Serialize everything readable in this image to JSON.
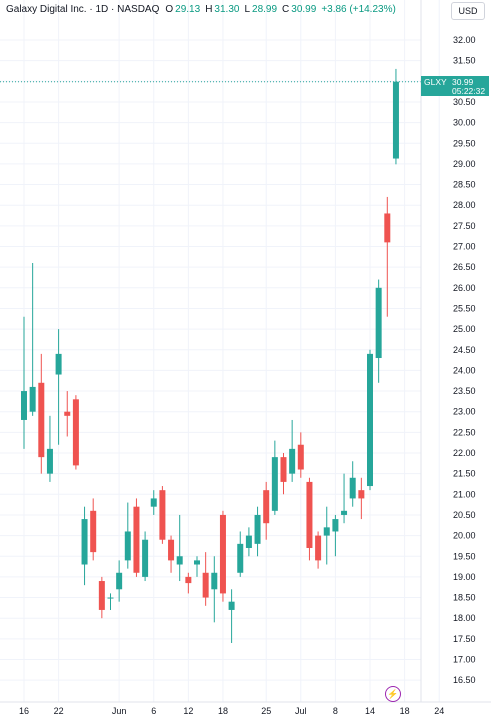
{
  "header": {
    "symbol_line": "Galaxy Digital Inc. · 1D · NASDAQ",
    "open_label": "O",
    "open": "29.13",
    "high_label": "H",
    "high": "31.30",
    "low_label": "L",
    "low": "28.99",
    "close_label": "C",
    "close": "30.99",
    "change": "+3.86 (+14.23%)"
  },
  "currency": "USD",
  "last_price": {
    "symbol": "GLXY",
    "price": "30.99",
    "countdown": "05:22:32"
  },
  "colors": {
    "up": "#26a69a",
    "down": "#ef5350",
    "last_line": "#26a69a",
    "grid": "#f0f3fa",
    "axis_text": "#131722",
    "event": "#9c27b0"
  },
  "event_icon": "lightning-icon",
  "chart_data": {
    "type": "candlestick",
    "title": "",
    "xlabel": "",
    "ylabel": "",
    "ylim": [
      16.2,
      32.4
    ],
    "y_ticks": [
      "32.00",
      "31.50",
      "31.00",
      "30.50",
      "30.00",
      "29.50",
      "29.00",
      "28.50",
      "28.00",
      "27.50",
      "27.00",
      "26.50",
      "26.00",
      "25.50",
      "25.00",
      "24.50",
      "24.00",
      "23.50",
      "23.00",
      "22.50",
      "22.00",
      "21.50",
      "21.00",
      "20.50",
      "20.00",
      "19.50",
      "19.00",
      "18.50",
      "18.00",
      "17.50",
      "17.00",
      "16.50"
    ],
    "x_ticks": [
      {
        "label": "16",
        "index": 0
      },
      {
        "label": "22",
        "index": 4
      },
      {
        "label": "Jun",
        "index": 11
      },
      {
        "label": "6",
        "index": 15
      },
      {
        "label": "12",
        "index": 19
      },
      {
        "label": "18",
        "index": 23
      },
      {
        "label": "25",
        "index": 28
      },
      {
        "label": "Jul",
        "index": 32
      },
      {
        "label": "8",
        "index": 36
      },
      {
        "label": "14",
        "index": 40
      },
      {
        "label": "18",
        "index": 44
      },
      {
        "label": "24",
        "index": 48
      }
    ],
    "grid": true,
    "candles": [
      {
        "o": 22.8,
        "h": 25.3,
        "l": 22.1,
        "c": 23.5
      },
      {
        "o": 23.0,
        "h": 26.6,
        "l": 22.9,
        "c": 23.6
      },
      {
        "o": 23.7,
        "h": 24.4,
        "l": 21.5,
        "c": 21.9
      },
      {
        "o": 21.5,
        "h": 22.9,
        "l": 21.3,
        "c": 22.1
      },
      {
        "o": 23.9,
        "h": 25.0,
        "l": 22.2,
        "c": 24.4
      },
      {
        "o": 23.0,
        "h": 23.5,
        "l": 22.4,
        "c": 22.9
      },
      {
        "o": 23.3,
        "h": 23.4,
        "l": 21.6,
        "c": 21.7
      },
      {
        "o": 19.3,
        "h": 20.7,
        "l": 18.8,
        "c": 20.4
      },
      {
        "o": 20.6,
        "h": 20.9,
        "l": 19.4,
        "c": 19.6
      },
      {
        "o": 18.9,
        "h": 19.0,
        "l": 18.0,
        "c": 18.2
      },
      {
        "o": 18.5,
        "h": 18.6,
        "l": 18.2,
        "c": 18.5
      },
      {
        "o": 18.7,
        "h": 19.4,
        "l": 18.4,
        "c": 19.1
      },
      {
        "o": 19.4,
        "h": 20.8,
        "l": 19.2,
        "c": 20.1
      },
      {
        "o": 20.7,
        "h": 20.9,
        "l": 19.0,
        "c": 19.1
      },
      {
        "o": 19.0,
        "h": 20.1,
        "l": 18.9,
        "c": 19.9
      },
      {
        "o": 20.7,
        "h": 21.1,
        "l": 20.5,
        "c": 20.9
      },
      {
        "o": 21.1,
        "h": 21.2,
        "l": 19.8,
        "c": 19.9
      },
      {
        "o": 19.9,
        "h": 20.0,
        "l": 19.1,
        "c": 19.4
      },
      {
        "o": 19.3,
        "h": 20.5,
        "l": 18.9,
        "c": 19.5
      },
      {
        "o": 19.0,
        "h": 19.1,
        "l": 18.6,
        "c": 18.85
      },
      {
        "o": 19.3,
        "h": 19.5,
        "l": 19.0,
        "c": 19.4
      },
      {
        "o": 19.1,
        "h": 19.6,
        "l": 18.3,
        "c": 18.5
      },
      {
        "o": 18.7,
        "h": 19.5,
        "l": 17.9,
        "c": 19.1
      },
      {
        "o": 20.5,
        "h": 20.6,
        "l": 18.4,
        "c": 18.6
      },
      {
        "o": 18.2,
        "h": 18.7,
        "l": 17.4,
        "c": 18.4
      },
      {
        "o": 19.1,
        "h": 20.1,
        "l": 19.0,
        "c": 19.8
      },
      {
        "o": 19.7,
        "h": 20.2,
        "l": 19.5,
        "c": 20.0
      },
      {
        "o": 19.8,
        "h": 20.7,
        "l": 19.5,
        "c": 20.5
      },
      {
        "o": 21.1,
        "h": 21.3,
        "l": 19.9,
        "c": 20.3
      },
      {
        "o": 20.6,
        "h": 22.3,
        "l": 20.5,
        "c": 21.9
      },
      {
        "o": 21.9,
        "h": 22.0,
        "l": 21.0,
        "c": 21.3
      },
      {
        "o": 21.5,
        "h": 22.8,
        "l": 21.3,
        "c": 22.1
      },
      {
        "o": 22.2,
        "h": 22.5,
        "l": 21.4,
        "c": 21.6
      },
      {
        "o": 21.3,
        "h": 21.4,
        "l": 19.4,
        "c": 19.7
      },
      {
        "o": 20.0,
        "h": 20.1,
        "l": 19.2,
        "c": 19.4
      },
      {
        "o": 20.0,
        "h": 20.7,
        "l": 19.3,
        "c": 20.2
      },
      {
        "o": 20.1,
        "h": 20.5,
        "l": 19.5,
        "c": 20.4
      },
      {
        "o": 20.5,
        "h": 21.5,
        "l": 20.3,
        "c": 20.6
      },
      {
        "o": 20.9,
        "h": 21.8,
        "l": 20.7,
        "c": 21.4
      },
      {
        "o": 21.1,
        "h": 21.4,
        "l": 20.4,
        "c": 20.9
      },
      {
        "o": 21.2,
        "h": 24.5,
        "l": 21.1,
        "c": 24.4
      },
      {
        "o": 24.3,
        "h": 26.2,
        "l": 23.7,
        "c": 26.0
      },
      {
        "o": 27.8,
        "h": 28.2,
        "l": 25.3,
        "c": 27.1
      },
      {
        "o": 29.13,
        "h": 31.3,
        "l": 28.99,
        "c": 30.99
      }
    ]
  }
}
